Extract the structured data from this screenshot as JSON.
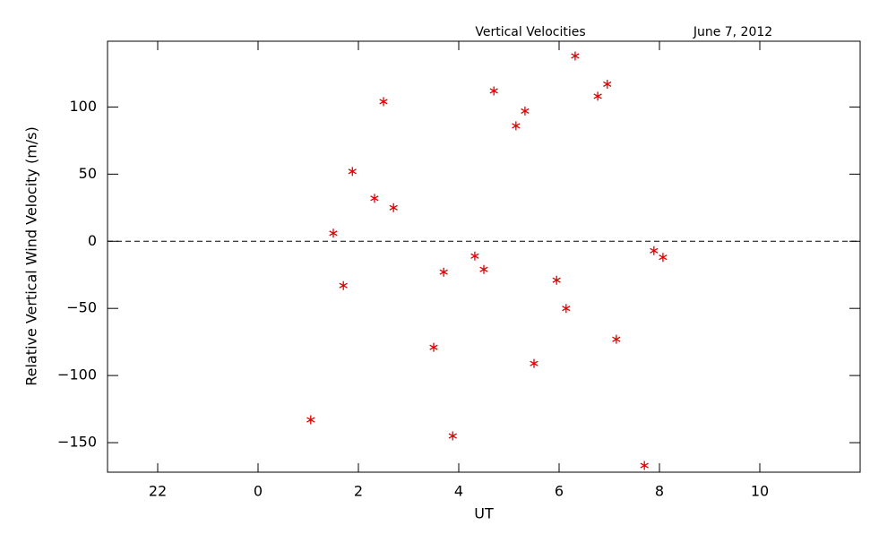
{
  "chart_data": {
    "type": "scatter",
    "title": "Vertical Velocities",
    "subtitle": "June 7, 2012",
    "x_label": "UT",
    "y_label": "Relative Vertical Wind Velocity (m/s)",
    "xlim": [
      -3,
      12
    ],
    "ylim": [
      -172,
      149
    ],
    "xticks": [
      {
        "value": -2,
        "label": "22"
      },
      0,
      2,
      4,
      6,
      8,
      10
    ],
    "yticks": [
      -150,
      -100,
      -50,
      0,
      50,
      100
    ],
    "hline": 0,
    "series": [
      {
        "color": "#e00000",
        "x": [
          1.05,
          1.5,
          1.7,
          1.88,
          2.32,
          2.5,
          2.7,
          3.5,
          3.7,
          3.88,
          4.32,
          4.5,
          4.7,
          5.14,
          5.32,
          5.5,
          5.95,
          6.14,
          6.32,
          6.77,
          6.96,
          7.14,
          7.7,
          7.89,
          8.07
        ],
        "values": [
          -133,
          6,
          -33,
          52,
          32,
          104,
          25,
          -79,
          -23,
          -145,
          -11,
          -21,
          112,
          86,
          97,
          -91,
          -29,
          -50,
          138,
          108,
          117,
          -73,
          -167,
          -7,
          -12
        ]
      }
    ]
  }
}
